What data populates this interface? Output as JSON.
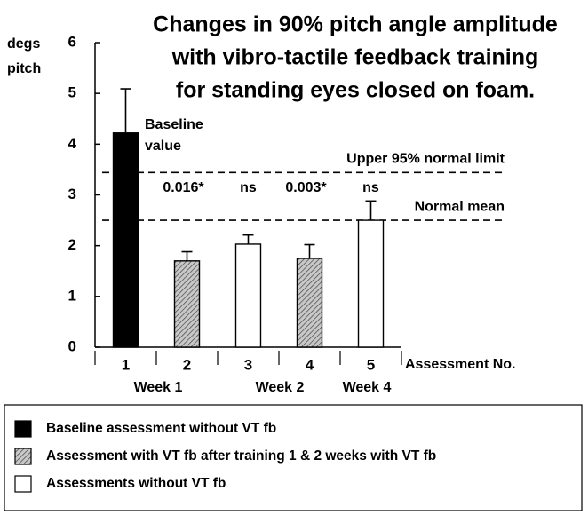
{
  "chart_data": {
    "type": "bar",
    "title": [
      "Changes in 90% pitch angle amplitude",
      "with vibro-tactile feedback training",
      "for standing eyes closed on foam."
    ],
    "y_label": [
      "degs",
      "pitch"
    ],
    "x_label": "Assessment  No.",
    "categories": [
      "1",
      "2",
      "3",
      "4",
      "5"
    ],
    "series": [
      {
        "values": [
          4.22,
          1.7,
          2.03,
          1.75,
          2.5
        ],
        "errors": [
          0.87,
          0.18,
          0.18,
          0.27,
          0.38
        ],
        "styles": [
          "solid",
          "hatched",
          "open",
          "hatched",
          "open"
        ]
      }
    ],
    "bar_annotations": [
      null,
      "0.016*",
      "ns",
      "0.003*",
      "ns"
    ],
    "baseline_note": [
      "Baseline",
      "value"
    ],
    "week_labels": [
      "Week  1",
      "Week  2",
      "Week  4"
    ],
    "reference_lines": [
      {
        "label": "Upper 95% normal limit",
        "value": 3.44
      },
      {
        "label": "Normal mean",
        "value": 2.5
      }
    ],
    "ylim": [
      0,
      6
    ],
    "yticks": [
      0,
      1,
      2,
      3,
      4,
      5,
      6
    ],
    "legend": [
      {
        "label": "Baseline assessment  without  VT fb",
        "style": "solid"
      },
      {
        "label": "Assessment  with VT fb after training 1 & 2 weeks with VT fb",
        "style": "hatched"
      },
      {
        "label": "Assessments  without  VT fb",
        "style": "open"
      }
    ]
  }
}
